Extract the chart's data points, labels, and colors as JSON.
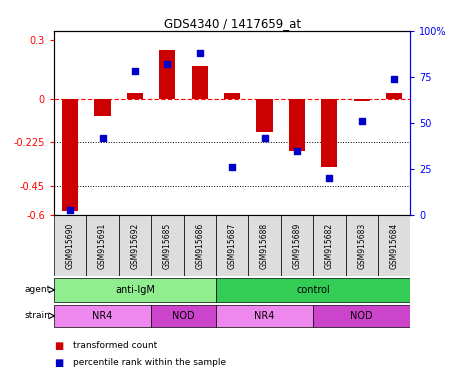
{
  "title": "GDS4340 / 1417659_at",
  "samples": [
    "GSM915690",
    "GSM915691",
    "GSM915692",
    "GSM915685",
    "GSM915686",
    "GSM915687",
    "GSM915688",
    "GSM915689",
    "GSM915682",
    "GSM915683",
    "GSM915684"
  ],
  "transformed_count": [
    -0.58,
    -0.09,
    0.03,
    0.25,
    0.17,
    0.03,
    -0.17,
    -0.27,
    -0.35,
    -0.01,
    0.03
  ],
  "percentile_rank": [
    3,
    42,
    78,
    82,
    88,
    26,
    42,
    35,
    20,
    51,
    74
  ],
  "ylim_left": [
    -0.6,
    0.35
  ],
  "ylim_right": [
    0,
    100
  ],
  "yticks_left": [
    0.3,
    0.0,
    -0.225,
    -0.45,
    -0.6
  ],
  "ytick_labels_left": [
    "0.3",
    "0",
    "-0.225",
    "-0.45",
    "-0.6"
  ],
  "yticks_right": [
    100,
    75,
    50,
    25,
    0
  ],
  "ytick_labels_right": [
    "100%",
    "75",
    "50",
    "25",
    "0"
  ],
  "hline_y": 0.0,
  "dotted_lines": [
    -0.225,
    -0.45
  ],
  "bar_color": "#cc0000",
  "scatter_color": "#0000cc",
  "agent_groups": [
    {
      "label": "anti-IgM",
      "start": 0,
      "end": 5,
      "color": "#90ee90"
    },
    {
      "label": "control",
      "start": 5,
      "end": 11,
      "color": "#33cc55"
    }
  ],
  "strain_groups": [
    {
      "label": "NR4",
      "start": 0,
      "end": 3,
      "color": "#ee88ee"
    },
    {
      "label": "NOD",
      "start": 3,
      "end": 5,
      "color": "#cc44cc"
    },
    {
      "label": "NR4",
      "start": 5,
      "end": 8,
      "color": "#ee88ee"
    },
    {
      "label": "NOD",
      "start": 8,
      "end": 11,
      "color": "#cc44cc"
    }
  ],
  "legend_bar_color": "#cc0000",
  "legend_scatter_color": "#0000cc",
  "legend_bar_label": "transformed count",
  "legend_scatter_label": "percentile rank within the sample",
  "bar_width": 0.5,
  "sample_box_color": "#dddddd",
  "agent_light_green": "#aaffaa",
  "agent_dark_green": "#33cc55"
}
